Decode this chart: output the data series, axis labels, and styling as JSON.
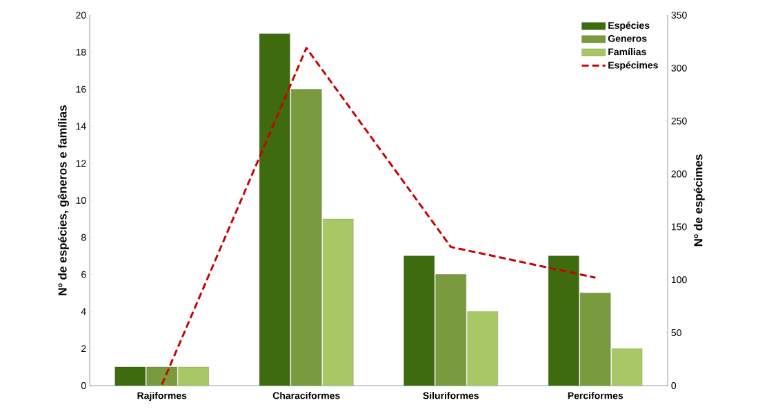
{
  "chart_data": {
    "type": "bar",
    "categories": [
      "Rajiformes",
      "Characiformes",
      "Siluriformes",
      "Perciformes"
    ],
    "series": [
      {
        "name": "Espécies",
        "color": "#3f6b0f",
        "values": [
          1,
          19,
          7,
          7
        ]
      },
      {
        "name": "Generos",
        "color": "#7a9a3e",
        "values": [
          1,
          16,
          6,
          5
        ]
      },
      {
        "name": "Famílias",
        "color": "#a8c865",
        "values": [
          1,
          9,
          4,
          2
        ]
      },
      {
        "name": "Espécimes",
        "color": "#cc0000",
        "type": "line",
        "axis": "y2",
        "line_style": "dashed",
        "values": [
          1,
          319,
          131,
          102
        ]
      }
    ],
    "ylabel": "Nº de espécies, gêneros e famílias",
    "y2label": "Nº de espécimes",
    "ylim": [
      0,
      20
    ],
    "yticks": [
      0,
      2,
      4,
      6,
      8,
      10,
      12,
      14,
      16,
      18,
      20
    ],
    "y2lim": [
      0,
      350
    ],
    "y2ticks": [
      0,
      50,
      100,
      150,
      200,
      250,
      300,
      350
    ],
    "legend": "top right",
    "grid": false
  }
}
